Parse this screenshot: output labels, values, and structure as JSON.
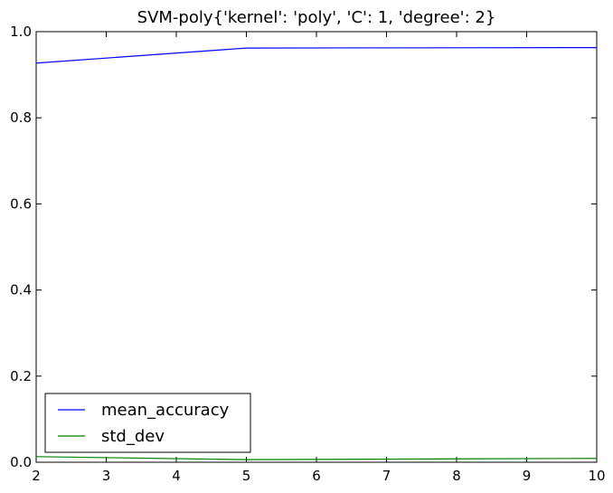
{
  "chart_data": {
    "type": "line",
    "title": "SVM-poly{'kernel': 'poly', 'C': 1, 'degree': 2}",
    "xlabel": "",
    "ylabel": "",
    "xlim": [
      2,
      10
    ],
    "ylim": [
      0.0,
      1.0
    ],
    "xticks": [
      "2",
      "3",
      "4",
      "5",
      "6",
      "7",
      "8",
      "9",
      "10"
    ],
    "yticks": [
      "0.0",
      "0.2",
      "0.4",
      "0.6",
      "0.8",
      "1.0"
    ],
    "x": [
      2,
      5,
      10
    ],
    "series": [
      {
        "name": "mean_accuracy",
        "color": "#0000ff",
        "values": [
          0.927,
          0.962,
          0.963
        ]
      },
      {
        "name": "std_dev",
        "color": "#008000",
        "values": [
          0.013,
          0.006,
          0.009
        ]
      }
    ],
    "legend": {
      "placement": "lower-left"
    },
    "grid": false
  }
}
